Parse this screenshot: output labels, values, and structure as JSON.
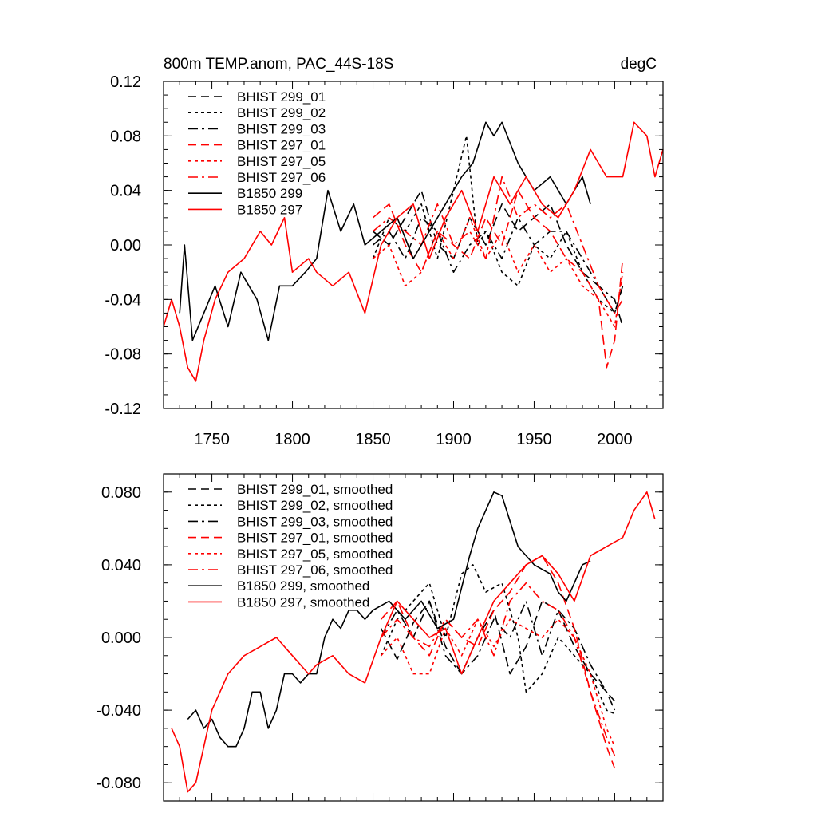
{
  "chart_data": [
    {
      "type": "line",
      "title": "800m TEMP.anom, PAC_44S-18S",
      "units": "degC",
      "xlim": [
        1720,
        2030
      ],
      "ylim": [
        -0.12,
        0.12
      ],
      "x_ticks": [
        1750,
        1800,
        1850,
        1900,
        1950,
        2000
      ],
      "x_tick_labels": [
        "1750",
        "1800",
        "1850",
        "1900",
        "1950",
        "2000"
      ],
      "y_ticks": [
        -0.12,
        -0.08,
        -0.04,
        0.0,
        0.04,
        0.08,
        0.12
      ],
      "y_tick_labels": [
        "-0.12",
        "-0.08",
        "-0.04",
        "0.00",
        "0.04",
        "0.08",
        "0.12"
      ],
      "legend_position": "top-left",
      "series": [
        {
          "name": "BHIST 299_01",
          "color": "#000000",
          "dash": "long-dash",
          "x": [
            1850,
            1860,
            1870,
            1880,
            1890,
            1900,
            1910,
            1920,
            1930,
            1940,
            1950,
            1960,
            1970,
            1980,
            1990,
            2000,
            2005
          ],
          "y": [
            0.01,
            0.0,
            0.02,
            0.04,
            0.0,
            -0.01,
            0.02,
            0.0,
            0.03,
            0.01,
            0.02,
            0.03,
            0.0,
            -0.02,
            -0.03,
            -0.05,
            -0.03
          ]
        },
        {
          "name": "BHIST 299_02",
          "color": "#000000",
          "dash": "short-dash",
          "x": [
            1850,
            1860,
            1870,
            1880,
            1890,
            1900,
            1908,
            1915,
            1920,
            1930,
            1940,
            1950,
            1960,
            1970,
            1980,
            1990,
            2000,
            2005
          ],
          "y": [
            -0.01,
            0.02,
            0.01,
            0.03,
            -0.01,
            0.04,
            0.08,
            0.0,
            0.01,
            -0.02,
            -0.03,
            0.0,
            -0.01,
            0.01,
            -0.02,
            -0.04,
            -0.05,
            -0.03
          ]
        },
        {
          "name": "BHIST 299_03",
          "color": "#000000",
          "dash": "dash-dot",
          "x": [
            1850,
            1860,
            1870,
            1880,
            1890,
            1900,
            1910,
            1920,
            1930,
            1940,
            1950,
            1960,
            1970,
            1980,
            1990,
            2000,
            2005
          ],
          "y": [
            0.0,
            0.01,
            -0.01,
            0.02,
            0.01,
            -0.02,
            0.0,
            0.01,
            -0.01,
            0.02,
            0.0,
            0.01,
            0.01,
            -0.01,
            -0.03,
            -0.04,
            -0.06
          ]
        },
        {
          "name": "BHIST 297_01",
          "color": "#ff0000",
          "dash": "long-dash",
          "x": [
            1850,
            1860,
            1870,
            1880,
            1890,
            1900,
            1910,
            1920,
            1930,
            1940,
            1950,
            1960,
            1970,
            1980,
            1990,
            1995,
            2000,
            2005
          ],
          "y": [
            0.02,
            0.03,
            0.0,
            -0.02,
            0.01,
            0.0,
            -0.01,
            0.02,
            0.0,
            0.04,
            0.02,
            0.01,
            -0.01,
            -0.02,
            -0.04,
            -0.09,
            -0.07,
            -0.01
          ]
        },
        {
          "name": "BHIST 297_05",
          "color": "#ff0000",
          "dash": "short-dash",
          "x": [
            1850,
            1860,
            1870,
            1880,
            1890,
            1900,
            1910,
            1920,
            1930,
            1940,
            1950,
            1960,
            1970,
            1980,
            1990,
            2000,
            2005
          ],
          "y": [
            -0.01,
            0.0,
            -0.03,
            -0.02,
            0.01,
            -0.01,
            0.02,
            -0.01,
            0.01,
            -0.02,
            0.0,
            -0.02,
            -0.01,
            -0.03,
            -0.04,
            -0.06,
            -0.02
          ]
        },
        {
          "name": "BHIST 297_06",
          "color": "#ff0000",
          "dash": "dash-dot",
          "x": [
            1850,
            1860,
            1870,
            1880,
            1890,
            1900,
            1910,
            1920,
            1930,
            1940,
            1950,
            1960,
            1970,
            1980,
            1990,
            2000,
            2005
          ],
          "y": [
            0.01,
            0.02,
            0.01,
            0.0,
            0.03,
            0.0,
            0.01,
            -0.01,
            0.05,
            0.02,
            0.03,
            0.02,
            0.03,
            0.0,
            -0.03,
            -0.05,
            -0.04
          ]
        },
        {
          "name": "B1850 299",
          "color": "#000000",
          "dash": "solid",
          "x": [
            1730,
            1733,
            1738,
            1745,
            1752,
            1760,
            1768,
            1778,
            1785,
            1792,
            1800,
            1808,
            1815,
            1822,
            1830,
            1838,
            1845,
            1855,
            1865,
            1875,
            1885,
            1895,
            1905,
            1912,
            1920,
            1925,
            1930,
            1940,
            1950,
            1960,
            1970,
            1980,
            1985
          ],
          "y": [
            -0.05,
            0.0,
            -0.07,
            -0.05,
            -0.03,
            -0.06,
            -0.02,
            -0.04,
            -0.07,
            -0.03,
            -0.03,
            -0.02,
            -0.01,
            0.04,
            0.01,
            0.03,
            0.0,
            0.01,
            0.02,
            -0.01,
            0.01,
            0.03,
            0.05,
            0.06,
            0.09,
            0.08,
            0.09,
            0.06,
            0.04,
            0.05,
            0.03,
            0.05,
            0.03
          ]
        },
        {
          "name": "B1850 297",
          "color": "#ff0000",
          "dash": "solid",
          "x": [
            1720,
            1725,
            1730,
            1735,
            1740,
            1745,
            1752,
            1760,
            1770,
            1780,
            1787,
            1795,
            1800,
            1810,
            1815,
            1825,
            1835,
            1845,
            1855,
            1865,
            1875,
            1885,
            1895,
            1905,
            1915,
            1925,
            1935,
            1945,
            1955,
            1965,
            1975,
            1985,
            1995,
            2005,
            2012,
            2020,
            2025,
            2030
          ],
          "y": [
            -0.06,
            -0.04,
            -0.06,
            -0.09,
            -0.1,
            -0.07,
            -0.04,
            -0.02,
            -0.01,
            0.01,
            0.0,
            0.02,
            -0.02,
            -0.01,
            -0.02,
            -0.03,
            -0.02,
            -0.05,
            0.0,
            0.02,
            0.03,
            -0.01,
            0.02,
            0.04,
            0.01,
            0.05,
            0.03,
            0.05,
            0.03,
            0.02,
            0.04,
            0.07,
            0.05,
            0.05,
            0.09,
            0.08,
            0.05,
            0.07
          ]
        }
      ]
    },
    {
      "type": "line",
      "title": "",
      "xlim": [
        1720,
        2030
      ],
      "ylim": [
        -0.09,
        0.09
      ],
      "x_ticks": [
        1750,
        1800,
        1850,
        1900,
        1950,
        2000
      ],
      "y_ticks": [
        -0.08,
        -0.04,
        0.0,
        0.04,
        0.08
      ],
      "y_tick_labels": [
        "-0.080",
        "-0.040",
        "0.000",
        "0.040",
        "0.080"
      ],
      "legend_position": "top-left",
      "series": [
        {
          "name": "BHIST 299_01, smoothed",
          "color": "#000000",
          "dash": "long-dash",
          "x": [
            1855,
            1865,
            1875,
            1885,
            1895,
            1905,
            1915,
            1925,
            1935,
            1945,
            1955,
            1965,
            1975,
            1985,
            1995,
            2000
          ],
          "y": [
            0.005,
            -0.012,
            0.008,
            0.02,
            -0.005,
            -0.02,
            0.0,
            0.015,
            -0.02,
            -0.005,
            0.02,
            0.015,
            -0.005,
            -0.02,
            -0.03,
            -0.035
          ]
        },
        {
          "name": "BHIST 299_02, smoothed",
          "color": "#000000",
          "dash": "short-dash",
          "x": [
            1855,
            1865,
            1875,
            1885,
            1895,
            1905,
            1912,
            1920,
            1930,
            1940,
            1945,
            1955,
            1965,
            1975,
            1985,
            1995,
            2000
          ],
          "y": [
            -0.01,
            0.01,
            0.02,
            0.03,
            0.0,
            0.035,
            0.04,
            0.025,
            0.03,
            0.0,
            -0.03,
            -0.02,
            0.0,
            -0.01,
            -0.02,
            -0.04,
            -0.042
          ]
        },
        {
          "name": "BHIST 299_03, smoothed",
          "color": "#000000",
          "dash": "dash-dot",
          "x": [
            1855,
            1865,
            1875,
            1885,
            1895,
            1905,
            1915,
            1925,
            1935,
            1945,
            1955,
            1965,
            1975,
            1985,
            1995,
            2000
          ],
          "y": [
            0.0,
            0.015,
            0.0,
            0.02,
            -0.01,
            -0.02,
            -0.01,
            0.01,
            0.0,
            0.02,
            -0.01,
            0.015,
            0.005,
            -0.015,
            -0.03,
            -0.04
          ]
        },
        {
          "name": "BHIST 297_01, smoothed",
          "color": "#ff0000",
          "dash": "long-dash",
          "x": [
            1855,
            1865,
            1875,
            1885,
            1895,
            1905,
            1915,
            1925,
            1935,
            1945,
            1955,
            1965,
            1975,
            1985,
            1995,
            2000
          ],
          "y": [
            0.01,
            0.02,
            0.0,
            -0.01,
            0.01,
            0.0,
            -0.005,
            0.015,
            0.025,
            0.04,
            0.045,
            0.03,
            0.005,
            -0.03,
            -0.06,
            -0.072
          ]
        },
        {
          "name": "BHIST 297_05, smoothed",
          "color": "#ff0000",
          "dash": "short-dash",
          "x": [
            1855,
            1865,
            1875,
            1885,
            1895,
            1905,
            1915,
            1925,
            1935,
            1945,
            1955,
            1965,
            1975,
            1985,
            1995,
            2000
          ],
          "y": [
            -0.01,
            0.0,
            -0.02,
            -0.02,
            0.005,
            -0.01,
            0.01,
            -0.005,
            0.01,
            0.005,
            0.0,
            0.01,
            0.0,
            -0.02,
            -0.05,
            -0.06
          ]
        },
        {
          "name": "BHIST 297_06, smoothed",
          "color": "#ff0000",
          "dash": "dash-dot",
          "x": [
            1855,
            1865,
            1875,
            1885,
            1895,
            1905,
            1915,
            1925,
            1935,
            1945,
            1955,
            1965,
            1975,
            1985,
            1995,
            2000
          ],
          "y": [
            0.0,
            0.01,
            0.0,
            -0.005,
            0.01,
            0.0,
            0.01,
            -0.01,
            0.02,
            0.03,
            0.02,
            0.015,
            0.0,
            -0.03,
            -0.055,
            -0.065
          ]
        },
        {
          "name": "B1850 299, smoothed",
          "color": "#000000",
          "dash": "solid",
          "x": [
            1735,
            1740,
            1745,
            1750,
            1755,
            1760,
            1765,
            1770,
            1775,
            1780,
            1785,
            1790,
            1795,
            1800,
            1805,
            1810,
            1815,
            1820,
            1825,
            1830,
            1835,
            1840,
            1845,
            1850,
            1860,
            1870,
            1880,
            1890,
            1900,
            1910,
            1915,
            1920,
            1925,
            1930,
            1940,
            1950,
            1960,
            1965,
            1970,
            1975,
            1980,
            1985
          ],
          "y": [
            -0.045,
            -0.04,
            -0.05,
            -0.045,
            -0.055,
            -0.06,
            -0.06,
            -0.05,
            -0.03,
            -0.03,
            -0.05,
            -0.04,
            -0.02,
            -0.02,
            -0.025,
            -0.02,
            -0.02,
            0.0,
            0.01,
            0.005,
            0.015,
            0.015,
            0.01,
            0.015,
            0.02,
            0.01,
            0.02,
            0.005,
            0.01,
            0.045,
            0.06,
            0.07,
            0.08,
            0.078,
            0.05,
            0.04,
            0.035,
            0.025,
            0.02,
            0.03,
            0.04,
            0.042
          ]
        },
        {
          "name": "B1850 297, smoothed",
          "color": "#ff0000",
          "dash": "solid",
          "x": [
            1725,
            1730,
            1735,
            1740,
            1745,
            1750,
            1755,
            1760,
            1770,
            1780,
            1790,
            1800,
            1810,
            1815,
            1825,
            1835,
            1845,
            1855,
            1865,
            1875,
            1885,
            1895,
            1905,
            1915,
            1925,
            1935,
            1945,
            1955,
            1965,
            1975,
            1985,
            1995,
            2005,
            2012,
            2020,
            2025
          ],
          "y": [
            -0.05,
            -0.06,
            -0.085,
            -0.08,
            -0.06,
            -0.04,
            -0.03,
            -0.02,
            -0.01,
            -0.005,
            0.0,
            -0.01,
            -0.02,
            -0.015,
            -0.01,
            -0.02,
            -0.025,
            0.0,
            0.02,
            0.01,
            0.0,
            0.005,
            -0.02,
            0.0,
            0.02,
            0.03,
            0.04,
            0.045,
            0.035,
            0.02,
            0.045,
            0.05,
            0.055,
            0.07,
            0.08,
            0.065
          ]
        }
      ]
    }
  ]
}
